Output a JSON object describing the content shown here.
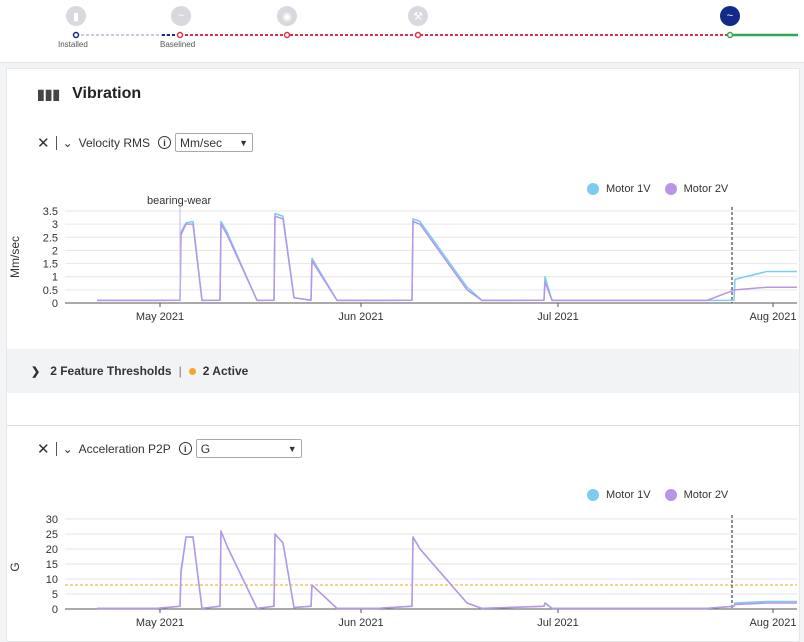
{
  "timeline": {
    "stages": [
      {
        "label": "Installed",
        "icon": "shield-icon"
      },
      {
        "label": "Baselined",
        "icon": "wave-icon"
      },
      {
        "label": "",
        "icon": "eye-icon"
      },
      {
        "label": "",
        "icon": "wrench-icon"
      },
      {
        "label": "",
        "icon": "wave-icon"
      }
    ],
    "colors": {
      "done": "#142a8a",
      "alert": "#e0314b",
      "ok": "#2fa84f",
      "pending": "#c6cbe0"
    }
  },
  "section": {
    "title": "Vibration",
    "icon": "vibration-icon"
  },
  "legend": {
    "series1": "Motor 1V",
    "series2": "Motor 2V",
    "color1": "#7ccbf2",
    "color2": "#b895e6"
  },
  "velocity": {
    "metric": "Velocity RMS",
    "unit": "Mm/sec",
    "annotation": "bearing-wear",
    "thresholds_label": "2 Feature Thresholds",
    "active_label": "2 Active"
  },
  "acceleration": {
    "metric": "Acceleration P2P",
    "unit": "G"
  },
  "chart_data": [
    {
      "type": "line",
      "ylabel": "Mm/sec",
      "ylim": [
        0,
        3.5
      ],
      "yticks": [
        "0",
        "0.5",
        "1",
        "1.5",
        "2",
        "2.5",
        "3",
        "3.5"
      ],
      "xticks": [
        "May 2021",
        "Jun 2021",
        "Jul 2021",
        "Aug 2021"
      ],
      "annotations": [
        "bearing-wear"
      ],
      "series": [
        {
          "name": "Motor 1V",
          "values": [
            0.1,
            0.1,
            0.1,
            2.7,
            3.05,
            3.1,
            0.1,
            3.1,
            2.7,
            0.1,
            3.4,
            3.3,
            0.2,
            1.7,
            0.1,
            0.1,
            3.2,
            3.1,
            0.6,
            0.1,
            1.0,
            0.1,
            0.1,
            0.1,
            0.9,
            1.2,
            1.2
          ]
        },
        {
          "name": "Motor 2V",
          "values": [
            0.1,
            0.1,
            0.1,
            2.6,
            3.0,
            3.0,
            0.1,
            3.0,
            2.6,
            0.1,
            3.3,
            3.2,
            0.2,
            1.6,
            0.1,
            0.1,
            3.1,
            3.0,
            0.5,
            0.1,
            0.8,
            0.1,
            0.1,
            0.1,
            0.5,
            0.6,
            0.6
          ]
        }
      ],
      "legend": "top-right"
    },
    {
      "type": "line",
      "ylabel": "G",
      "ylim": [
        0,
        30
      ],
      "yticks": [
        "0",
        "5",
        "10",
        "15",
        "20",
        "25",
        "30"
      ],
      "xticks": [
        "May 2021",
        "Jun 2021",
        "Jul 2021",
        "Aug 2021"
      ],
      "threshold": 8,
      "series": [
        {
          "name": "Motor 1V",
          "values": [
            0.2,
            0.2,
            0.2,
            13,
            24,
            24,
            0.2,
            26,
            21,
            0.2,
            25,
            22,
            0.5,
            8,
            0.2,
            0.2,
            24,
            20,
            2,
            0.2,
            2,
            0.2,
            0.2,
            0.2,
            2,
            2.5,
            2.5
          ]
        },
        {
          "name": "Motor 2V",
          "values": [
            0.2,
            0.2,
            0.2,
            12,
            24,
            24,
            0.2,
            26,
            21,
            0.2,
            25,
            22,
            0.5,
            8,
            0.2,
            0.2,
            24,
            20,
            2,
            0.2,
            2,
            0.2,
            0.2,
            0.2,
            1.5,
            2,
            2
          ]
        }
      ],
      "legend": "top-right"
    }
  ]
}
